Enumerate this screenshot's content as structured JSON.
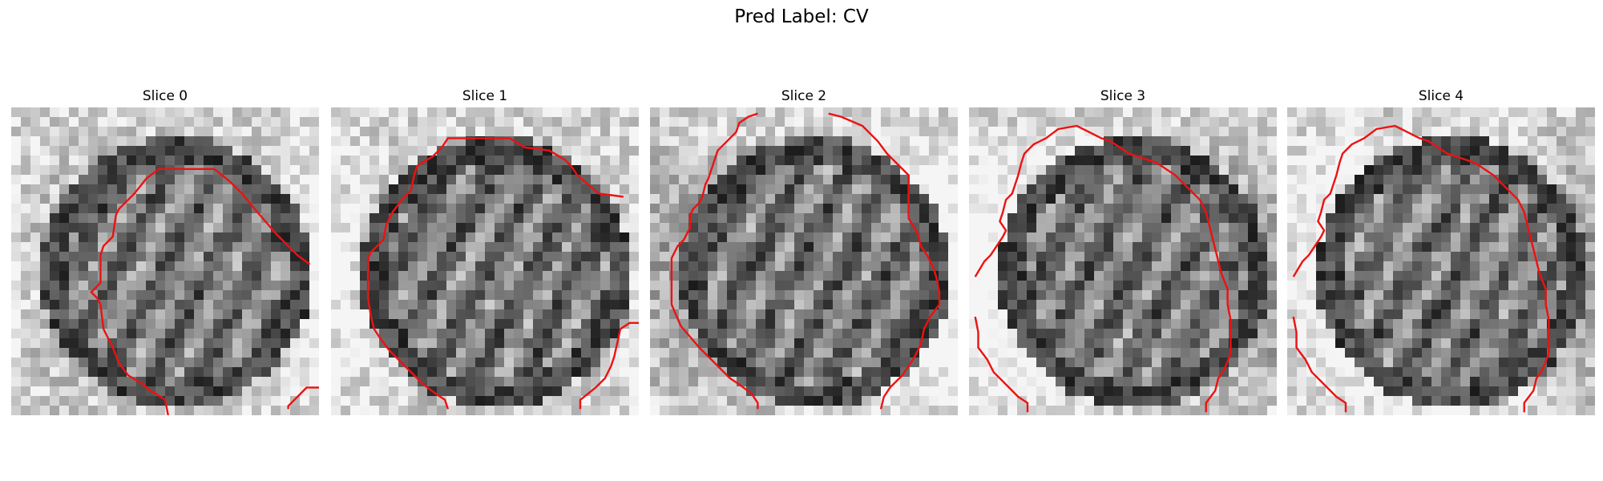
{
  "figure": {
    "title": "Pred Label: CV"
  },
  "colors": {
    "contour": "#ee1111",
    "background": "#ffffff"
  },
  "panels": [
    {
      "title": "Slice 0",
      "seed": 11,
      "contours": [
        [
          [
            0.51,
            1.0
          ],
          [
            0.5,
            0.95
          ],
          [
            0.47,
            0.93
          ],
          [
            0.45,
            0.92
          ],
          [
            0.43,
            0.9
          ],
          [
            0.38,
            0.87
          ],
          [
            0.35,
            0.83
          ],
          [
            0.33,
            0.78
          ],
          [
            0.3,
            0.72
          ],
          [
            0.29,
            0.64
          ],
          [
            0.28,
            0.62
          ],
          [
            0.26,
            0.6
          ],
          [
            0.29,
            0.57
          ],
          [
            0.29,
            0.48
          ],
          [
            0.3,
            0.45
          ],
          [
            0.31,
            0.44
          ],
          [
            0.33,
            0.42
          ],
          [
            0.34,
            0.35
          ],
          [
            0.35,
            0.33
          ],
          [
            0.37,
            0.31
          ],
          [
            0.4,
            0.28
          ],
          [
            0.44,
            0.23
          ],
          [
            0.48,
            0.2
          ],
          [
            0.66,
            0.2
          ],
          [
            0.71,
            0.24
          ],
          [
            0.75,
            0.28
          ],
          [
            0.8,
            0.34
          ],
          [
            0.86,
            0.41
          ],
          [
            0.9,
            0.45
          ],
          [
            0.93,
            0.48
          ],
          [
            0.97,
            0.51
          ]
        ],
        [
          [
            0.9,
            0.98
          ],
          [
            0.9,
            0.97
          ],
          [
            0.92,
            0.95
          ],
          [
            0.96,
            0.91
          ],
          [
            1.0,
            0.91
          ]
        ]
      ]
    },
    {
      "title": "Slice 1",
      "seed": 23,
      "contours": [
        [
          [
            0.38,
            0.98
          ],
          [
            0.37,
            0.95
          ],
          [
            0.34,
            0.93
          ],
          [
            0.3,
            0.9
          ],
          [
            0.25,
            0.85
          ],
          [
            0.19,
            0.79
          ],
          [
            0.16,
            0.75
          ],
          [
            0.14,
            0.72
          ],
          [
            0.13,
            0.68
          ],
          [
            0.12,
            0.62
          ],
          [
            0.12,
            0.49
          ],
          [
            0.13,
            0.47
          ],
          [
            0.17,
            0.43
          ],
          [
            0.18,
            0.38
          ],
          [
            0.19,
            0.36
          ],
          [
            0.2,
            0.34
          ],
          [
            0.23,
            0.3
          ],
          [
            0.26,
            0.27
          ],
          [
            0.27,
            0.22
          ],
          [
            0.28,
            0.19
          ],
          [
            0.33,
            0.16
          ],
          [
            0.36,
            0.13
          ],
          [
            0.38,
            0.1
          ],
          [
            0.58,
            0.1
          ],
          [
            0.63,
            0.13
          ],
          [
            0.71,
            0.14
          ],
          [
            0.76,
            0.17
          ],
          [
            0.78,
            0.19
          ],
          [
            0.8,
            0.22
          ],
          [
            0.87,
            0.28
          ],
          [
            0.95,
            0.29
          ]
        ],
        [
          [
            0.81,
            0.98
          ],
          [
            0.81,
            0.95
          ],
          [
            0.86,
            0.91
          ],
          [
            0.89,
            0.88
          ],
          [
            0.91,
            0.84
          ],
          [
            0.92,
            0.81
          ],
          [
            0.94,
            0.72
          ],
          [
            0.97,
            0.7
          ],
          [
            1.0,
            0.7
          ]
        ]
      ]
    },
    {
      "title": "Slice 2",
      "seed": 37,
      "contours": [
        [
          [
            0.35,
            0.98
          ],
          [
            0.35,
            0.96
          ],
          [
            0.33,
            0.93
          ],
          [
            0.29,
            0.9
          ],
          [
            0.26,
            0.88
          ],
          [
            0.22,
            0.84
          ],
          [
            0.16,
            0.78
          ],
          [
            0.1,
            0.71
          ],
          [
            0.07,
            0.64
          ],
          [
            0.07,
            0.49
          ],
          [
            0.08,
            0.47
          ],
          [
            0.09,
            0.45
          ],
          [
            0.11,
            0.43
          ],
          [
            0.12,
            0.41
          ],
          [
            0.13,
            0.39
          ],
          [
            0.13,
            0.35
          ],
          [
            0.14,
            0.33
          ],
          [
            0.16,
            0.31
          ],
          [
            0.17,
            0.29
          ],
          [
            0.18,
            0.25
          ],
          [
            0.19,
            0.23
          ],
          [
            0.2,
            0.2
          ],
          [
            0.21,
            0.17
          ],
          [
            0.22,
            0.14
          ],
          [
            0.28,
            0.08
          ],
          [
            0.29,
            0.05
          ],
          [
            0.32,
            0.03
          ],
          [
            0.35,
            0.02
          ]
        ],
        [
          [
            0.58,
            0.02
          ],
          [
            0.62,
            0.03
          ],
          [
            0.69,
            0.06
          ],
          [
            0.74,
            0.11
          ],
          [
            0.77,
            0.15
          ],
          [
            0.8,
            0.18
          ],
          [
            0.84,
            0.22
          ],
          [
            0.84,
            0.36
          ],
          [
            0.87,
            0.41
          ],
          [
            0.88,
            0.45
          ],
          [
            0.9,
            0.48
          ],
          [
            0.92,
            0.52
          ],
          [
            0.93,
            0.55
          ],
          [
            0.94,
            0.6
          ],
          [
            0.94,
            0.64
          ],
          [
            0.91,
            0.68
          ],
          [
            0.89,
            0.72
          ],
          [
            0.88,
            0.77
          ],
          [
            0.86,
            0.81
          ],
          [
            0.84,
            0.84
          ],
          [
            0.82,
            0.87
          ],
          [
            0.78,
            0.91
          ],
          [
            0.76,
            0.94
          ],
          [
            0.75,
            0.98
          ]
        ]
      ]
    },
    {
      "title": "Slice 3",
      "seed": 53,
      "contours": [
        [
          [
            0.02,
            0.55
          ],
          [
            0.05,
            0.5
          ],
          [
            0.07,
            0.48
          ],
          [
            0.09,
            0.45
          ],
          [
            0.11,
            0.42
          ],
          [
            0.12,
            0.4
          ],
          [
            0.1,
            0.37
          ],
          [
            0.11,
            0.34
          ],
          [
            0.12,
            0.3
          ],
          [
            0.14,
            0.28
          ],
          [
            0.15,
            0.25
          ],
          [
            0.16,
            0.22
          ],
          [
            0.17,
            0.18
          ],
          [
            0.18,
            0.15
          ],
          [
            0.21,
            0.12
          ],
          [
            0.25,
            0.1
          ],
          [
            0.29,
            0.07
          ],
          [
            0.35,
            0.06
          ],
          [
            0.39,
            0.08
          ],
          [
            0.43,
            0.1
          ],
          [
            0.46,
            0.11
          ],
          [
            0.49,
            0.13
          ],
          [
            0.52,
            0.15
          ],
          [
            0.55,
            0.16
          ],
          [
            0.61,
            0.18
          ],
          [
            0.67,
            0.22
          ],
          [
            0.7,
            0.25
          ],
          [
            0.75,
            0.3
          ],
          [
            0.77,
            0.34
          ],
          [
            0.78,
            0.38
          ],
          [
            0.8,
            0.46
          ],
          [
            0.82,
            0.54
          ],
          [
            0.84,
            0.59
          ],
          [
            0.84,
            0.64
          ],
          [
            0.85,
            0.69
          ],
          [
            0.85,
            0.8
          ],
          [
            0.83,
            0.85
          ],
          [
            0.81,
            0.88
          ],
          [
            0.8,
            0.92
          ],
          [
            0.77,
            0.96
          ],
          [
            0.77,
            0.99
          ]
        ],
        [
          [
            0.02,
            0.68
          ],
          [
            0.03,
            0.73
          ],
          [
            0.03,
            0.78
          ],
          [
            0.06,
            0.82
          ],
          [
            0.08,
            0.86
          ],
          [
            0.13,
            0.91
          ],
          [
            0.16,
            0.94
          ],
          [
            0.19,
            0.96
          ],
          [
            0.19,
            0.99
          ]
        ]
      ]
    },
    {
      "title": "Slice 4",
      "seed": 71,
      "contours": [
        [
          [
            0.02,
            0.55
          ],
          [
            0.05,
            0.5
          ],
          [
            0.07,
            0.48
          ],
          [
            0.09,
            0.45
          ],
          [
            0.11,
            0.42
          ],
          [
            0.12,
            0.4
          ],
          [
            0.1,
            0.37
          ],
          [
            0.11,
            0.34
          ],
          [
            0.12,
            0.3
          ],
          [
            0.14,
            0.28
          ],
          [
            0.15,
            0.25
          ],
          [
            0.16,
            0.22
          ],
          [
            0.17,
            0.18
          ],
          [
            0.18,
            0.15
          ],
          [
            0.21,
            0.12
          ],
          [
            0.25,
            0.1
          ],
          [
            0.29,
            0.07
          ],
          [
            0.35,
            0.06
          ],
          [
            0.39,
            0.08
          ],
          [
            0.43,
            0.1
          ],
          [
            0.46,
            0.11
          ],
          [
            0.49,
            0.13
          ],
          [
            0.52,
            0.15
          ],
          [
            0.55,
            0.16
          ],
          [
            0.61,
            0.18
          ],
          [
            0.67,
            0.22
          ],
          [
            0.7,
            0.25
          ],
          [
            0.75,
            0.3
          ],
          [
            0.77,
            0.34
          ],
          [
            0.78,
            0.38
          ],
          [
            0.8,
            0.46
          ],
          [
            0.82,
            0.54
          ],
          [
            0.84,
            0.59
          ],
          [
            0.84,
            0.64
          ],
          [
            0.85,
            0.69
          ],
          [
            0.85,
            0.8
          ],
          [
            0.83,
            0.85
          ],
          [
            0.81,
            0.88
          ],
          [
            0.8,
            0.92
          ],
          [
            0.77,
            0.96
          ],
          [
            0.77,
            0.99
          ]
        ],
        [
          [
            0.02,
            0.68
          ],
          [
            0.03,
            0.73
          ],
          [
            0.03,
            0.78
          ],
          [
            0.06,
            0.82
          ],
          [
            0.08,
            0.86
          ],
          [
            0.13,
            0.91
          ],
          [
            0.16,
            0.94
          ],
          [
            0.19,
            0.96
          ],
          [
            0.19,
            0.99
          ]
        ]
      ]
    }
  ]
}
